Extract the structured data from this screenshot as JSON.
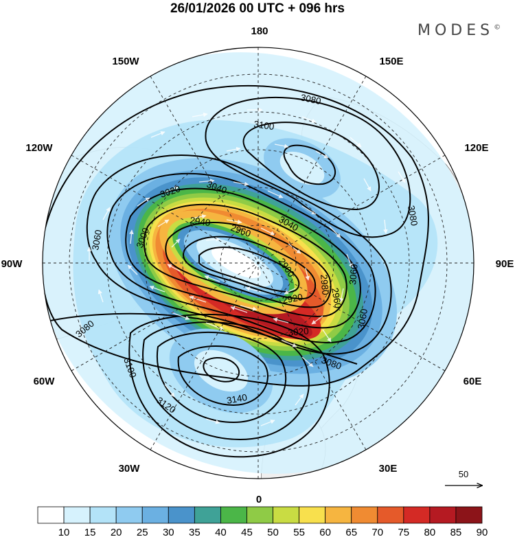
{
  "header": {
    "title": "26/01/2026  00 UTC  + 096 hrs",
    "brand": "MODES",
    "brand_mark": "©"
  },
  "map": {
    "projection": "north polar stereographic",
    "longitude_labels": [
      {
        "id": "180",
        "text": "180"
      },
      {
        "id": "150E",
        "text": "150E"
      },
      {
        "id": "120E",
        "text": "120E"
      },
      {
        "id": "90E",
        "text": "90E"
      },
      {
        "id": "60E",
        "text": "60E"
      },
      {
        "id": "30E",
        "text": "30E"
      },
      {
        "id": "0",
        "text": "0"
      },
      {
        "id": "30W",
        "text": "30W"
      },
      {
        "id": "60W",
        "text": "60W"
      },
      {
        "id": "90W",
        "text": "90W"
      },
      {
        "id": "120W",
        "text": "120W"
      },
      {
        "id": "150W",
        "text": "150W"
      }
    ],
    "contour_labels": [
      "3080",
      "3100",
      "3040",
      "3020",
      "2940",
      "2960",
      "3040",
      "3060",
      "3000",
      "2900",
      "2980",
      "2920",
      "3020",
      "2960",
      "3080",
      "3060",
      "3080",
      "3060",
      "3100",
      "3140",
      "3120",
      "3080"
    ],
    "wind_reference_vector": "50",
    "colors": {
      "land": "#efefef",
      "ocean": "#ffffff"
    }
  },
  "colorbar": {
    "ticks": [
      "10",
      "15",
      "20",
      "25",
      "30",
      "35",
      "40",
      "45",
      "50",
      "55",
      "60",
      "65",
      "70",
      "75",
      "80",
      "85",
      "90"
    ],
    "colors": [
      "#ffffff",
      "#d6f2fd",
      "#b3e3f8",
      "#8fcbf0",
      "#6bb0e2",
      "#4a93cb",
      "#3fa297",
      "#4bb648",
      "#8fcb46",
      "#c9dc43",
      "#f8e04d",
      "#f6b540",
      "#f08b32",
      "#e55a2a",
      "#d42a25",
      "#b51a22",
      "#8c1419"
    ]
  }
}
